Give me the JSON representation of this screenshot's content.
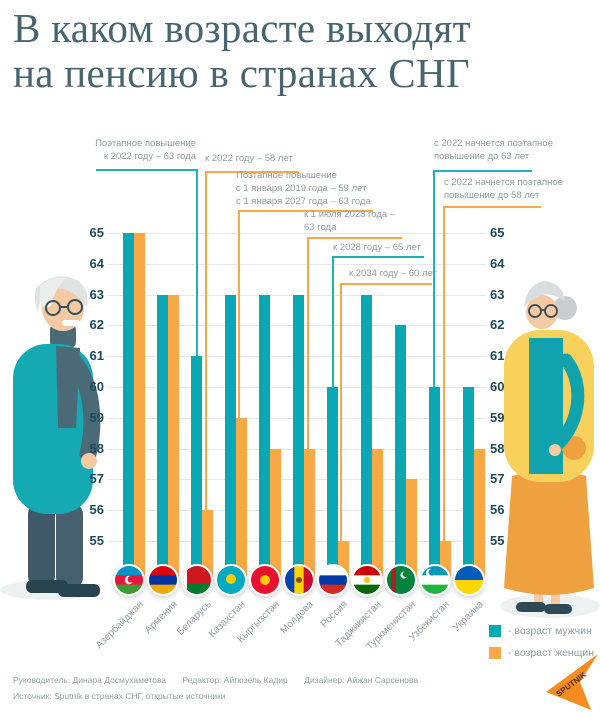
{
  "title": {
    "line1": "В каком возрасте выходят",
    "line2": "на пенсию в странах СНГ"
  },
  "chart_data": {
    "type": "bar",
    "categories": [
      "Азербайджан",
      "Армения",
      "Беларусь",
      "Казахстан",
      "Кыргызстан",
      "Молдова",
      "Россия",
      "Таджикистан",
      "Туркменистан",
      "Узбекистан",
      "Украина"
    ],
    "series": [
      {
        "name": "возраст мужчин",
        "color": "#0aa8b4",
        "values": [
          65,
          63,
          61,
          63,
          63,
          63,
          60,
          63,
          62,
          60,
          60
        ]
      },
      {
        "name": "возраст женщин",
        "color": "#f8a945",
        "values": [
          65,
          63,
          56,
          59,
          58,
          58,
          55,
          58,
          57,
          55,
          58
        ]
      }
    ],
    "ylim": [
      55,
      65
    ],
    "yticks": [
      65,
      64,
      63,
      62,
      61,
      60,
      59,
      58,
      57,
      56,
      55
    ],
    "grid": true,
    "legend_position": "bottom-right"
  },
  "annotations": [
    {
      "series": "men",
      "country": "Беларусь",
      "lines": [
        "Поэтапное повышение",
        "к 2022 году – 63 года"
      ]
    },
    {
      "series": "women",
      "country": "Беларусь",
      "lines": [
        "к 2022 году – 58 лет"
      ]
    },
    {
      "series": "women",
      "country": "Казахстан",
      "lines": [
        "Поэтапное повышение",
        "с 1 января 2019 года – 59 лет",
        "с 1 января 2027 года – 63 года"
      ]
    },
    {
      "series": "women",
      "country": "Молдова",
      "lines": [
        "к 1 июля 2028 года –",
        "63 года"
      ]
    },
    {
      "series": "men",
      "country": "Россия",
      "lines": [
        "к 2028 году – 65 лет"
      ]
    },
    {
      "series": "women",
      "country": "Россия",
      "lines": [
        "к 2034 году – 60 лет"
      ]
    },
    {
      "series": "men",
      "country": "Узбекистан",
      "lines": [
        "с 2022 начнется поэтапное",
        "повышение до 63 лет"
      ]
    },
    {
      "series": "women",
      "country": "Узбекистан",
      "lines": [
        "с 2022 начнется поэтапное",
        "повышение до 58 лет"
      ]
    }
  ],
  "legend": {
    "items": [
      {
        "label": "- возраст мужчин",
        "color": "#0aa8b4"
      },
      {
        "label": "- возраст женщин",
        "color": "#f8a945"
      }
    ]
  },
  "footer": {
    "credits": [
      "Руководитель: Динара Досмухаметова",
      "Редактор: Айгюзель Кадир",
      "Дизайнер: Айжан Сарсенова"
    ],
    "source": "Источник: Sputnik в странах СНГ, открытые источники",
    "logo_text": "SPUTNIK"
  },
  "colors": {
    "men": "#0aa8b4",
    "women": "#f8a945",
    "title": "#47656f",
    "axis_labels": "#1c4a5e",
    "annotation_text": "#8d9ba1",
    "logo": "#f68b1f"
  }
}
